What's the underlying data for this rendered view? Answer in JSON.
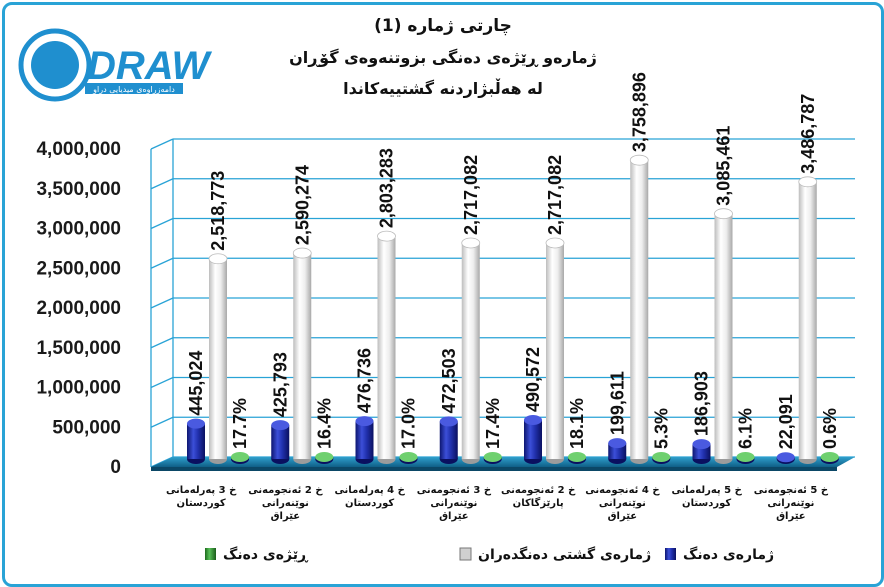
{
  "logo": {
    "wordmark": "DRAW",
    "tagline": "دامەزراوەی میدیایی دراو",
    "colors": {
      "primary": "#1f8fcf",
      "dark": "#0b4f7a"
    }
  },
  "chart_data": {
    "type": "bar",
    "title": [
      "چارتی ژمارە (1)",
      "ژمارەو ڕێژەی دەنگی بزوتنەوەی گۆڕان",
      "لە هەڵبژاردنە گشتییەکاندا"
    ],
    "categories": [
      [
        "خ 3 پەرلەمانی",
        "کوردستان"
      ],
      [
        "خ 2 ئەنجومەنی",
        "نوێنەرانی",
        "عێراق"
      ],
      [
        "خ 4 پەرلەمانی",
        "کوردستان"
      ],
      [
        "خ 3 ئەنجومەنی",
        "نوێنەرانی",
        "عێراق"
      ],
      [
        "خ 2 ئەنجومەنی",
        "پارێزگاکان"
      ],
      [
        "خ 4 ئەنجومەنی",
        "نوێنەرانی",
        "عێراق"
      ],
      [
        "خ 5 پەرلەمانی",
        "کوردستان"
      ],
      [
        "خ 5 ئەنجومەنی",
        "نوێنەرانی",
        "عێراق"
      ]
    ],
    "series": [
      {
        "name": "ژمارەی دەنگ",
        "values": [
          445024,
          425793,
          476736,
          472503,
          490572,
          199611,
          186903,
          22091
        ],
        "labels": [
          "445,024",
          "425,793",
          "476,736",
          "472,503",
          "490,572",
          "199,611",
          "186,903",
          "22,091"
        ],
        "color": "#1f2ea8"
      },
      {
        "name": "ژمارەی گشتی دەنگدەران",
        "values": [
          2518773,
          2590274,
          2803283,
          2717082,
          2717082,
          3758896,
          3085461,
          3486787
        ],
        "labels": [
          "2,518,773",
          "2,590,274",
          "2,803,283",
          "2,717,082",
          "2,717,082",
          "3,758,896",
          "3,085,461",
          "3,486,787"
        ],
        "color": "#f2f2f2"
      },
      {
        "name": "ڕێژەی دەنگ",
        "values": [
          17.7,
          16.4,
          17.0,
          17.4,
          18.1,
          5.3,
          6.1,
          0.6
        ],
        "labels": [
          "17.7%",
          "16.4%",
          "17.0%",
          "17.4%",
          "18.1%",
          "5.3%",
          "6.1%",
          "0.6%"
        ],
        "color": "#3a9d3a"
      }
    ],
    "yticks": [
      "0",
      "500,000",
      "1,000,000",
      "1,500,000",
      "2,000,000",
      "2,500,000",
      "3,000,000",
      "3,500,000",
      "4,000,000"
    ],
    "ylim": [
      0,
      4000000
    ],
    "grid": true,
    "grid_color": "#29a3d6",
    "floor_color": "#1f7fa6",
    "legend_position": "bottom"
  }
}
